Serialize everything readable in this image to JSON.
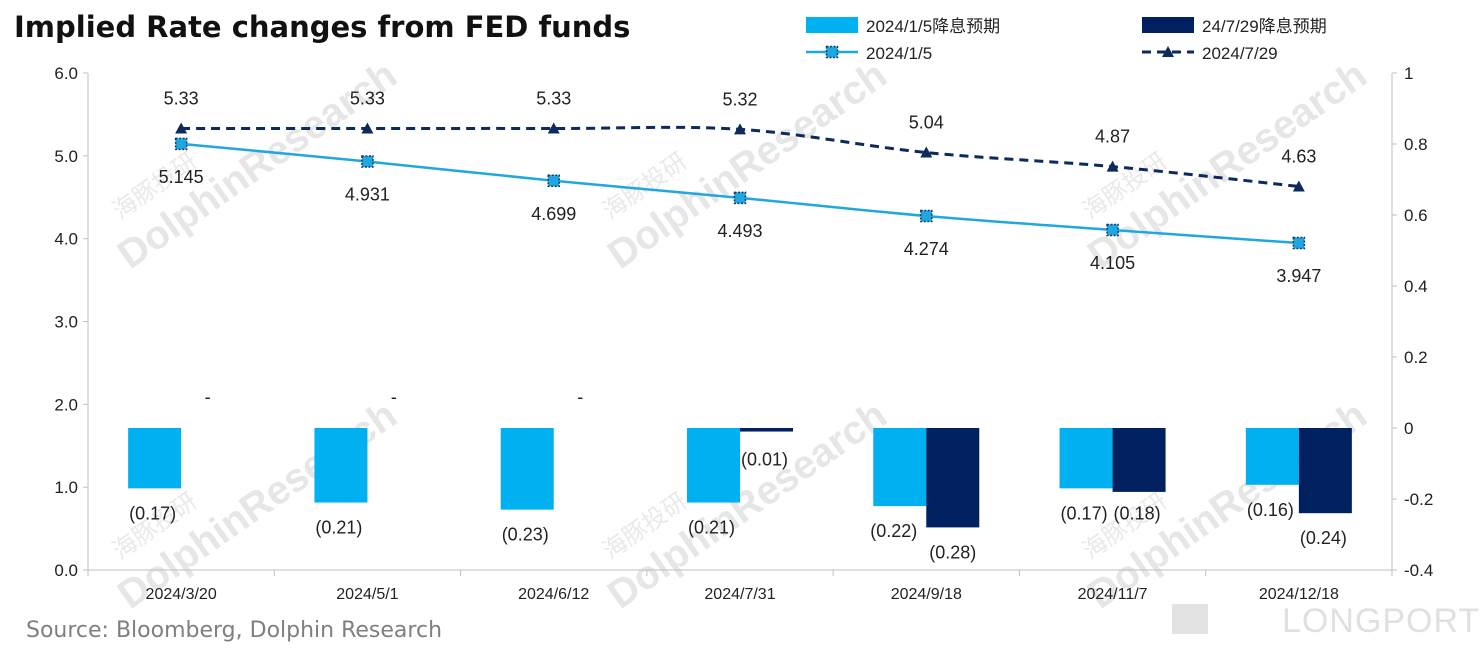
{
  "title": "Implied Rate changes from FED funds",
  "source": "Source: Bloomberg, Dolphin Research",
  "watermark": {
    "text_en": "DolphinResearch",
    "text_cn": "海豚投研",
    "brand": "LONGPORT"
  },
  "chart_data": {
    "type": "bar+line",
    "categories": [
      "2024/3/20",
      "2024/5/1",
      "2024/6/12",
      "2024/7/31",
      "2024/9/18",
      "2024/11/7",
      "2024/12/18"
    ],
    "left_axis": {
      "min": 0,
      "max": 6,
      "ticks": [
        "0.0",
        "1.0",
        "2.0",
        "3.0",
        "4.0",
        "5.0",
        "6.0"
      ]
    },
    "right_axis": {
      "min": -0.4,
      "max": 1,
      "ticks": [
        "-0.4",
        "-0.2",
        "0",
        "0.2",
        "0.4",
        "0.6",
        "0.8",
        "1"
      ]
    },
    "bar_series": [
      {
        "name": "2024/1/5降息预期",
        "color": "#00b0f0",
        "values": [
          -0.17,
          -0.21,
          -0.23,
          -0.21,
          -0.22,
          -0.17,
          -0.16
        ],
        "labels": [
          "(0.17)",
          "(0.21)",
          "(0.23)",
          "(0.21)",
          "(0.22)",
          "(0.17)",
          "(0.16)"
        ]
      },
      {
        "name": "24/7/29降息预期",
        "color": "#002060",
        "values": [
          0,
          0,
          0,
          -0.01,
          -0.28,
          -0.18,
          -0.24
        ],
        "labels": [
          "-",
          "-",
          "-",
          "(0.01)",
          "(0.28)",
          "(0.18)",
          "(0.24)"
        ]
      }
    ],
    "line_series": [
      {
        "name": "2024/1/5",
        "color": "#1fa8e0",
        "style": "solid",
        "marker": "square",
        "values": [
          5.145,
          4.931,
          4.699,
          4.493,
          4.274,
          4.105,
          3.947
        ],
        "labels": [
          "5.145",
          "4.931",
          "4.699",
          "4.493",
          "4.274",
          "4.105",
          "3.947"
        ]
      },
      {
        "name": "2024/7/29",
        "color": "#0d2a5c",
        "style": "dashed",
        "marker": "triangle",
        "values": [
          5.33,
          5.33,
          5.33,
          5.32,
          5.04,
          4.87,
          4.63
        ],
        "labels": [
          "5.33",
          "5.33",
          "5.33",
          "5.32",
          "5.04",
          "4.87",
          "4.63"
        ]
      }
    ],
    "legend": "top-right"
  }
}
